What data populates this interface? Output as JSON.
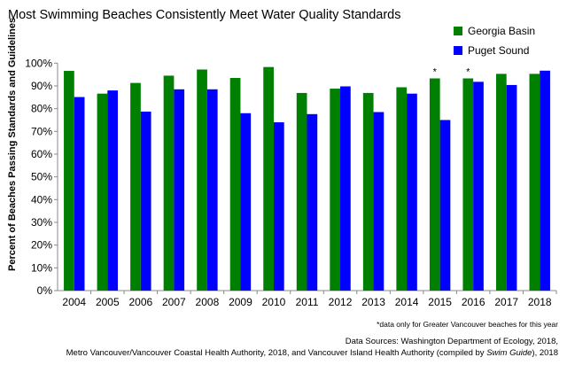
{
  "chart_data": {
    "type": "bar",
    "title": "Most Swimming Beaches Consistently Meet Water Quality Standards",
    "ylabel": "Percent of Beaches Passing Standards and Guidelines",
    "xlabel": "",
    "ylim": [
      0,
      100
    ],
    "yticks": [
      "0%",
      "10%",
      "20%",
      "30%",
      "40%",
      "50%",
      "60%",
      "70%",
      "80%",
      "90%",
      "100%"
    ],
    "grid": false,
    "legend_position": "top-right",
    "categories": [
      "2004",
      "2005",
      "2006",
      "2007",
      "2008",
      "2009",
      "2010",
      "2011",
      "2012",
      "2013",
      "2014",
      "2015",
      "2016",
      "2017",
      "2018"
    ],
    "series": [
      {
        "name": "Georgia Basin",
        "color": "#008000",
        "values": [
          96.6,
          86.6,
          91.3,
          94.5,
          97.2,
          93.5,
          98.3,
          86.9,
          88.8,
          86.9,
          89.4,
          93.3,
          93.3,
          95.3,
          95.3
        ]
      },
      {
        "name": "Puget Sound",
        "color": "#0000ff",
        "values": [
          85.1,
          88.0,
          78.7,
          88.5,
          88.5,
          78.0,
          74.0,
          77.6,
          89.8,
          78.5,
          86.6,
          75.0,
          91.8,
          90.4,
          96.7
        ]
      }
    ],
    "annotations": [
      {
        "category": "2015",
        "text": "*"
      },
      {
        "category": "2016",
        "text": "*"
      }
    ],
    "footnote": "*data only for Greater Vancouver beaches for this year",
    "sources": {
      "line1": "Data Sources: Washington Department of Ecology, 2018,",
      "line2_pre": "Metro Vancouver/Vancouver Coastal Health Authority, 2018, and Vancouver Island Health Authority (compiled by ",
      "line2_italic": "Swim Guide",
      "line2_post": "), 2018"
    }
  }
}
